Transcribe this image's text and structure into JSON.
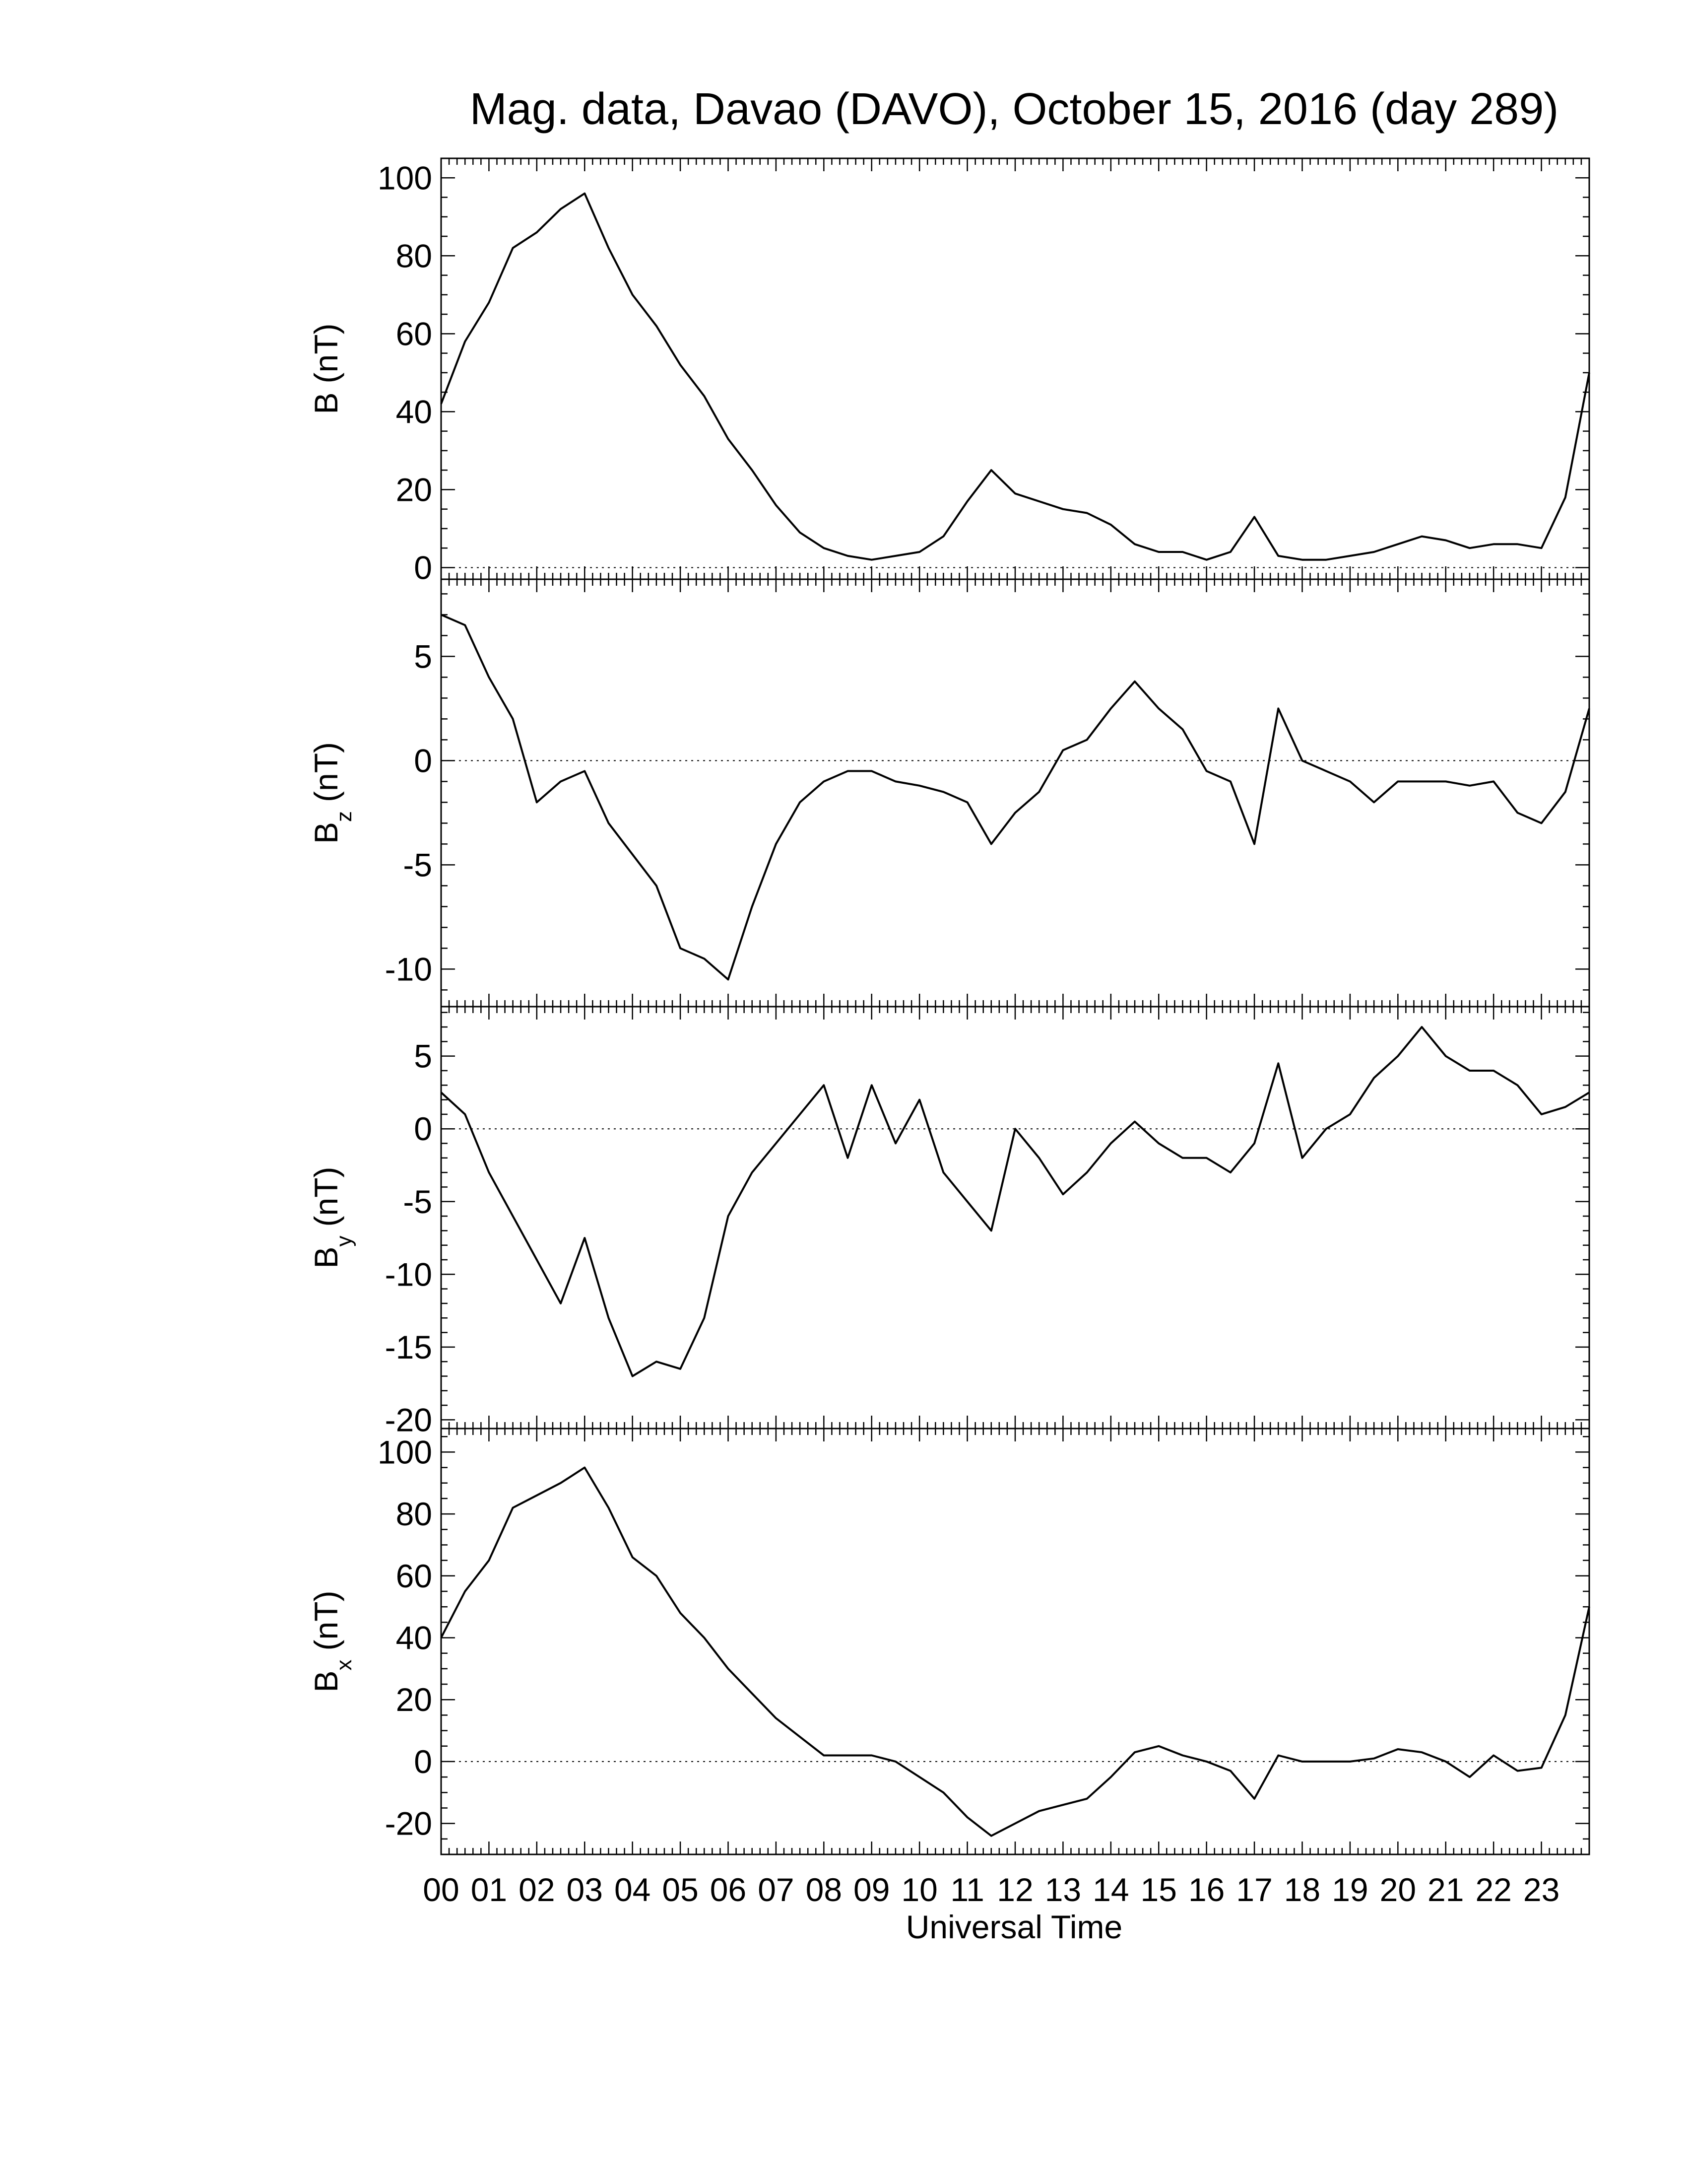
{
  "chart_data": [
    {
      "type": "line",
      "title": "Mag. data, Davao (DAVO), October 15, 2016 (day 289)",
      "ylabel": "B",
      "ylabel_unit": "(nT)",
      "color": "#000000",
      "x": [
        0,
        0.5,
        1,
        1.5,
        2,
        2.5,
        3,
        3.5,
        4,
        4.5,
        5,
        5.5,
        6,
        6.5,
        7,
        7.5,
        8,
        8.5,
        9,
        9.5,
        10,
        10.5,
        11,
        11.5,
        12,
        12.5,
        13,
        13.5,
        14,
        14.5,
        15,
        15.5,
        16,
        16.5,
        17,
        17.5,
        18,
        18.5,
        19,
        19.5,
        20,
        20.5,
        21,
        21.5,
        22,
        22.5,
        23,
        23.5,
        24
      ],
      "values": [
        42,
        58,
        68,
        82,
        86,
        92,
        96,
        82,
        70,
        62,
        52,
        44,
        33,
        25,
        16,
        9,
        5,
        3,
        2,
        3,
        4,
        8,
        17,
        25,
        19,
        17,
        15,
        14,
        11,
        6,
        4,
        4,
        2,
        4,
        13,
        3,
        2,
        2,
        3,
        4,
        6,
        8,
        7,
        5,
        6,
        6,
        5,
        18,
        50
      ],
      "xlim": [
        0,
        24
      ],
      "ylim": [
        -3,
        105
      ],
      "yticks": [
        0,
        20,
        40,
        60,
        80,
        100
      ],
      "yminor": 4,
      "xminor": 6,
      "zero_line": true
    },
    {
      "type": "line",
      "ylabel": "B",
      "ylabel_sub": "z",
      "ylabel_unit": "(nT)",
      "color": "#000000",
      "x": [
        0,
        0.5,
        1,
        1.5,
        2,
        2.5,
        3,
        3.5,
        4,
        4.5,
        5,
        5.5,
        6,
        6.5,
        7,
        7.5,
        8,
        8.5,
        9,
        9.5,
        10,
        10.5,
        11,
        11.5,
        12,
        12.5,
        13,
        13.5,
        14,
        14.5,
        15,
        15.5,
        16,
        16.5,
        17,
        17.5,
        18,
        18.5,
        19,
        19.5,
        20,
        20.5,
        21,
        21.5,
        22,
        22.5,
        23,
        23.5,
        24
      ],
      "values": [
        7,
        6.5,
        4,
        2,
        -2,
        -1,
        -0.5,
        -3,
        -4.5,
        -6,
        -9,
        -9.5,
        -10.5,
        -7,
        -4,
        -2,
        -1,
        -0.5,
        -0.5,
        -1,
        -1.2,
        -1.5,
        -2,
        -4,
        -2.5,
        -1.5,
        0.5,
        1,
        2.5,
        3.8,
        2.5,
        1.5,
        -0.5,
        -1,
        -4,
        2.5,
        0,
        -0.5,
        -1,
        -2,
        -1,
        -1,
        -1,
        -1.2,
        -1,
        -2.5,
        -3,
        -1.5,
        2.5
      ],
      "xlim": [
        0,
        24
      ],
      "ylim": [
        -11.8,
        8.7
      ],
      "yticks": [
        -10,
        -5,
        0,
        5
      ],
      "yminor": 5,
      "xminor": 6,
      "zero_line": true
    },
    {
      "type": "line",
      "ylabel": "B",
      "ylabel_sub": "y",
      "ylabel_unit": "(nT)",
      "color": "#000000",
      "x": [
        0,
        0.5,
        1,
        1.5,
        2,
        2.5,
        3,
        3.5,
        4,
        4.5,
        5,
        5.5,
        6,
        6.5,
        7,
        7.5,
        8,
        8.5,
        9,
        9.5,
        10,
        10.5,
        11,
        11.5,
        12,
        12.5,
        13,
        13.5,
        14,
        14.5,
        15,
        15.5,
        16,
        16.5,
        17,
        17.5,
        18,
        18.5,
        19,
        19.5,
        20,
        20.5,
        21,
        21.5,
        22,
        22.5,
        23,
        23.5,
        24
      ],
      "values": [
        2.5,
        1,
        -3,
        -6,
        -9,
        -12,
        -7.5,
        -13,
        -17,
        -16,
        -16.5,
        -13,
        -6,
        -3,
        -1,
        1,
        3,
        -2,
        3,
        -1,
        2,
        -3,
        -5,
        -7,
        0,
        -2,
        -4.5,
        -3,
        -1,
        0.5,
        -1,
        -2,
        -2,
        -3,
        -1,
        4.5,
        -2,
        0,
        1,
        3.5,
        5,
        7,
        5,
        4,
        4,
        3,
        1,
        1.5,
        2.5
      ],
      "xlim": [
        0,
        24
      ],
      "ylim": [
        -20.6,
        8.4
      ],
      "yticks": [
        -20,
        -15,
        -10,
        -5,
        0,
        5
      ],
      "yminor": 5,
      "xminor": 6,
      "zero_line": true
    },
    {
      "type": "line",
      "ylabel": "B",
      "ylabel_sub": "x",
      "ylabel_unit": "(nT)",
      "xlabel": "Universal Time",
      "color": "#000000",
      "x": [
        0,
        0.5,
        1,
        1.5,
        2,
        2.5,
        3,
        3.5,
        4,
        4.5,
        5,
        5.5,
        6,
        6.5,
        7,
        7.5,
        8,
        8.5,
        9,
        9.5,
        10,
        10.5,
        11,
        11.5,
        12,
        12.5,
        13,
        13.5,
        14,
        14.5,
        15,
        15.5,
        16,
        16.5,
        17,
        17.5,
        18,
        18.5,
        19,
        19.5,
        20,
        20.5,
        21,
        21.5,
        22,
        22.5,
        23,
        23.5,
        24
      ],
      "values": [
        40,
        55,
        65,
        82,
        86,
        90,
        95,
        82,
        66,
        60,
        48,
        40,
        30,
        22,
        14,
        8,
        2,
        2,
        2,
        0,
        -5,
        -10,
        -18,
        -24,
        -20,
        -16,
        -14,
        -12,
        -5,
        3,
        5,
        2,
        0,
        -3,
        -12,
        2,
        0,
        0,
        0,
        1,
        4,
        3,
        0,
        -5,
        2,
        -3,
        -2,
        15,
        50
      ],
      "xlim": [
        0,
        24
      ],
      "ylim": [
        -30,
        107.6
      ],
      "yticks": [
        -20,
        0,
        20,
        40,
        60,
        80,
        100
      ],
      "yminor": 4,
      "xminor": 6,
      "zero_line": true,
      "xticks": [
        {
          "value": 0,
          "label": "00"
        },
        {
          "value": 1,
          "label": "01"
        },
        {
          "value": 2,
          "label": "02"
        },
        {
          "value": 3,
          "label": "03"
        },
        {
          "value": 4,
          "label": "04"
        },
        {
          "value": 5,
          "label": "05"
        },
        {
          "value": 6,
          "label": "06"
        },
        {
          "value": 7,
          "label": "07"
        },
        {
          "value": 8,
          "label": "08"
        },
        {
          "value": 9,
          "label": "09"
        },
        {
          "value": 10,
          "label": "10"
        },
        {
          "value": 11,
          "label": "11"
        },
        {
          "value": 12,
          "label": "12"
        },
        {
          "value": 13,
          "label": "13"
        },
        {
          "value": 14,
          "label": "14"
        },
        {
          "value": 15,
          "label": "15"
        },
        {
          "value": 16,
          "label": "16"
        },
        {
          "value": 17,
          "label": "17"
        },
        {
          "value": 18,
          "label": "18"
        },
        {
          "value": 19,
          "label": "19"
        },
        {
          "value": 20,
          "label": "20"
        },
        {
          "value": 21,
          "label": "21"
        },
        {
          "value": 22,
          "label": "22"
        },
        {
          "value": 23,
          "label": "23"
        }
      ]
    }
  ]
}
